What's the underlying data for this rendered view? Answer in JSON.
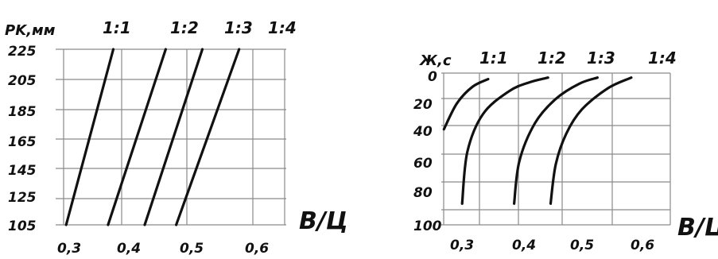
{
  "chart_data": [
    {
      "type": "line",
      "ylabel": "PK,мм",
      "xlabel": "В/Ц",
      "x_ticks": [
        "0,3",
        "0,4",
        "0,5",
        "0,6"
      ],
      "y_ticks": [
        "225",
        "205",
        "185",
        "165",
        "145",
        "125",
        "105"
      ],
      "xlim": [
        0.28,
        0.72
      ],
      "ylim": [
        105,
        225
      ],
      "grid": true,
      "series": [
        {
          "name": "1:1",
          "points": [
            [
              0.3,
              105
            ],
            [
              0.39,
              225
            ]
          ]
        },
        {
          "name": "1:2",
          "points": [
            [
              0.38,
              105
            ],
            [
              0.49,
              225
            ]
          ]
        },
        {
          "name": "1:3",
          "points": [
            [
              0.45,
              105
            ],
            [
              0.56,
              225
            ]
          ]
        },
        {
          "name": "1:4",
          "points": [
            [
              0.51,
              105
            ],
            [
              0.63,
              225
            ]
          ]
        }
      ]
    },
    {
      "type": "line",
      "ylabel": "Ж,с",
      "xlabel": "В/Ц",
      "x_ticks": [
        "0,3",
        "0,4",
        "0,5",
        "0,6"
      ],
      "y_ticks": [
        "0",
        "20",
        "40",
        "60",
        "80",
        "100"
      ],
      "xlim": [
        0.27,
        0.71
      ],
      "ylim": [
        0,
        100
      ],
      "y_inverted": true,
      "grid": true,
      "series": [
        {
          "name": "1:1",
          "points": [
            [
              0.275,
              37
            ],
            [
              0.3,
              20
            ],
            [
              0.33,
              9
            ],
            [
              0.36,
              4
            ]
          ]
        },
        {
          "name": "1:2",
          "points": [
            [
              0.31,
              86
            ],
            [
              0.32,
              52
            ],
            [
              0.35,
              27
            ],
            [
              0.4,
              12
            ],
            [
              0.44,
              6
            ],
            [
              0.475,
              3
            ]
          ]
        },
        {
          "name": "1:3",
          "points": [
            [
              0.41,
              86
            ],
            [
              0.42,
              58
            ],
            [
              0.45,
              33
            ],
            [
              0.49,
              17
            ],
            [
              0.535,
              7
            ],
            [
              0.57,
              3
            ]
          ]
        },
        {
          "name": "1:4",
          "points": [
            [
              0.48,
              86
            ],
            [
              0.49,
              60
            ],
            [
              0.51,
              40
            ],
            [
              0.54,
              24
            ],
            [
              0.59,
              10
            ],
            [
              0.635,
              3
            ]
          ]
        }
      ]
    }
  ]
}
